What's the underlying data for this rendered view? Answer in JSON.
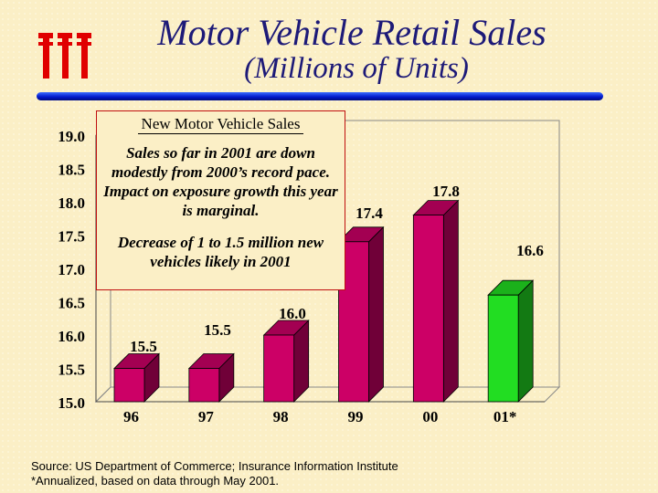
{
  "title": "Motor Vehicle Retail Sales",
  "subtitle": "(Millions of Units)",
  "colors": {
    "bar": "#cc0066",
    "bar_highlight": "#22dd22",
    "title": "#1d1a78"
  },
  "logo_icon": "iii-logo-icon",
  "annotation": {
    "heading": "New Motor Vehicle Sales",
    "text1": "Sales so far in 2001 are down modestly from 2000’s record pace. Impact on exposure growth this year is marginal.",
    "text2": "Decrease of 1 to 1.5 million new vehicles likely  in 2001"
  },
  "source_line1": "Source: US Department of Commerce; Insurance Information Institute",
  "source_line2": "*Annualized, based on data through May 2001.",
  "chart_data": {
    "type": "bar",
    "categories": [
      "96",
      "97",
      "98",
      "99",
      "00",
      "01*"
    ],
    "values": [
      15.5,
      15.5,
      16.0,
      17.4,
      17.8,
      16.6
    ],
    "data_labels": [
      "15.5",
      "15.5",
      "16.0",
      "17.4",
      "17.8",
      "16.6"
    ],
    "ylim": [
      15.0,
      19.0
    ],
    "yticks": [
      "15.0",
      "15.5",
      "16.0",
      "16.5",
      "17.0",
      "17.5",
      "18.0",
      "18.5",
      "19.0"
    ],
    "grid": false,
    "highlight_index": 5
  }
}
